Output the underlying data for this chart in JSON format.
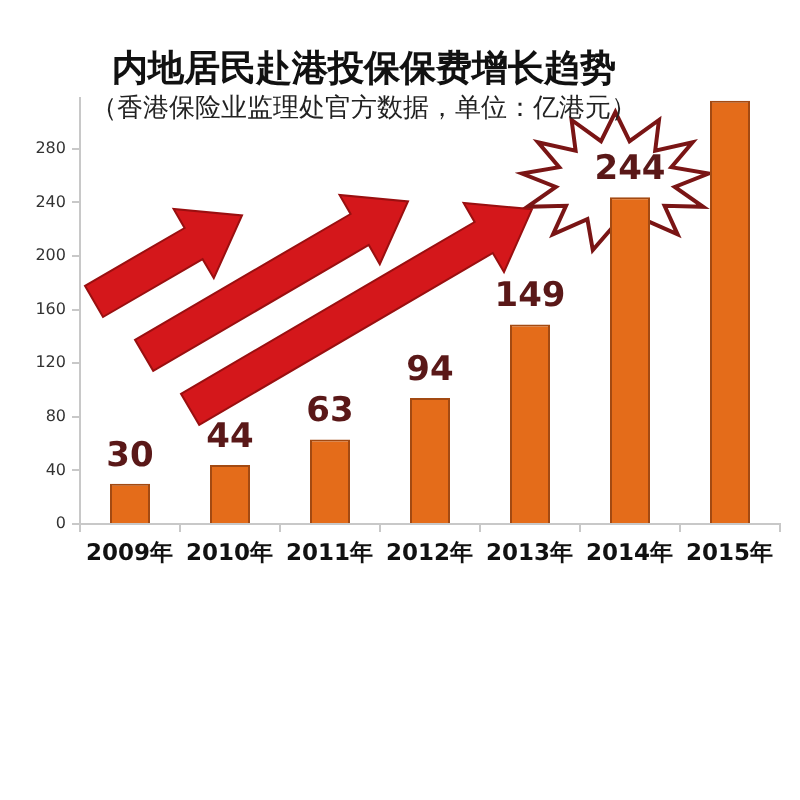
{
  "chart_data": {
    "type": "bar",
    "title": "内地居民赴港投保保费增长趋势",
    "subtitle": "（香港保险业监理处官方数据，单位：亿港元）",
    "categories": [
      "2009年",
      "2010年",
      "2011年",
      "2012年",
      "2013年",
      "2014年",
      "2015年"
    ],
    "values": [
      30,
      44,
      63,
      94,
      149,
      244,
      316
    ],
    "color": "#e46c1a",
    "value_labels": [
      "30",
      "44",
      "63",
      "94",
      "149",
      "244",
      null
    ],
    "ylim": [
      0,
      318
    ],
    "yticks": [
      0,
      40,
      80,
      120,
      160,
      200,
      240,
      280
    ],
    "grid": false,
    "legend": false
  }
}
